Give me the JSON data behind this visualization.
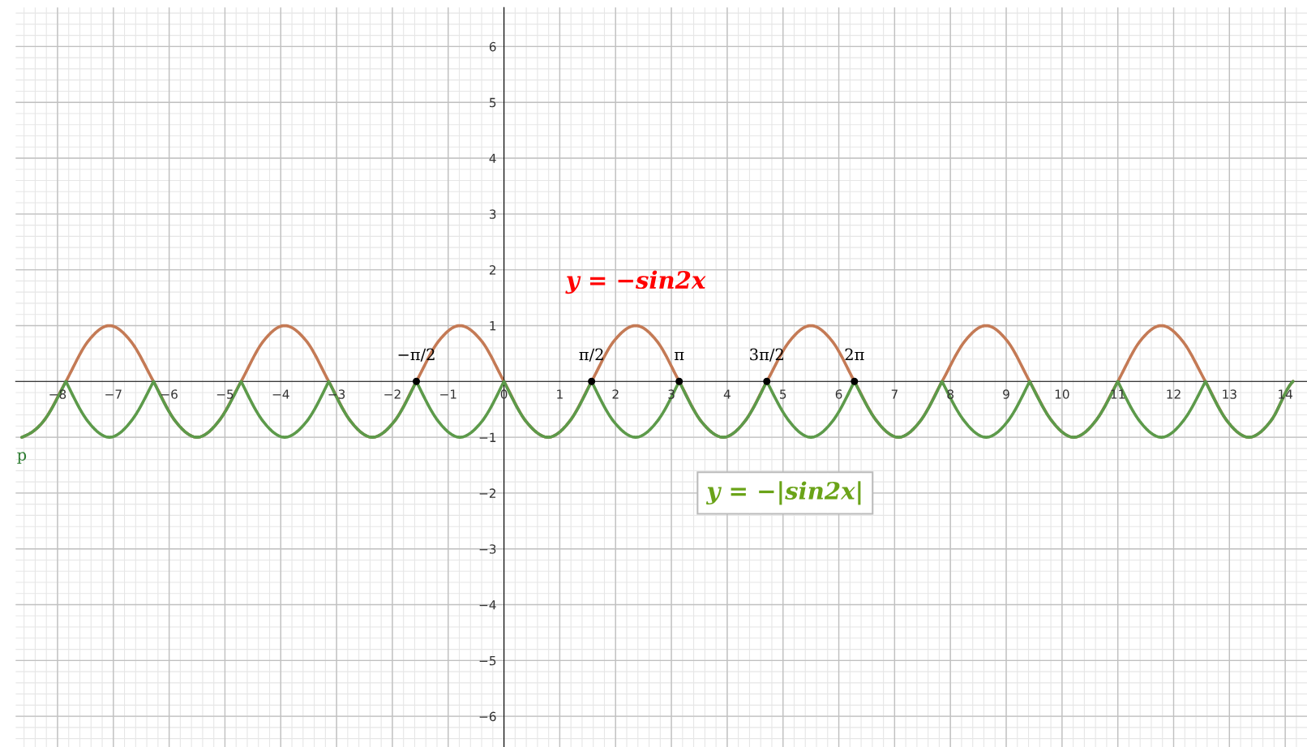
{
  "chart_data": {
    "type": "line",
    "x": [
      -8.64,
      -8.25,
      -7.85,
      -7.46,
      -7.07,
      -6.68,
      -6.28,
      -5.89,
      -5.5,
      -5.11,
      -4.71,
      -4.32,
      -3.93,
      -3.53,
      -3.14,
      -2.75,
      -2.36,
      -1.96,
      -1.57,
      -1.18,
      -0.79,
      -0.39,
      0,
      0.39,
      0.79,
      1.18,
      1.57,
      1.96,
      2.36,
      2.75,
      3.14,
      3.53,
      3.93,
      4.32,
      4.71,
      5.11,
      5.5,
      5.89,
      6.28,
      6.68,
      7.07,
      7.46,
      7.85,
      8.25,
      8.64,
      9.03,
      9.42,
      9.82,
      10.21,
      10.6,
      11.0,
      11.39,
      11.78,
      12.17,
      12.57,
      12.96,
      13.35,
      13.74,
      14.14
    ],
    "series": [
      {
        "name": "y = −sin2x",
        "color": "#c47a55",
        "values": [
          -1,
          -0.71,
          0,
          0.71,
          1,
          0.71,
          0,
          -0.71,
          -1,
          -0.71,
          0,
          0.71,
          1,
          0.71,
          0,
          -0.71,
          -1,
          -0.71,
          0,
          0.71,
          1,
          0.71,
          0,
          -0.71,
          -1,
          -0.71,
          0,
          0.71,
          1,
          0.71,
          0,
          -0.71,
          -1,
          -0.71,
          0,
          0.71,
          1,
          0.71,
          0,
          -0.71,
          -1,
          -0.71,
          0,
          0.71,
          1,
          0.71,
          0,
          -0.71,
          -1,
          -0.71,
          0,
          0.71,
          1,
          0.71,
          0,
          -0.71,
          -1,
          -0.71,
          0
        ]
      },
      {
        "name": "y = −|sin2x|",
        "color": "#5c9a4a",
        "values": [
          -1,
          -0.71,
          0,
          -0.71,
          -1,
          -0.71,
          0,
          -0.71,
          -1,
          -0.71,
          0,
          -0.71,
          -1,
          -0.71,
          0,
          -0.71,
          -1,
          -0.71,
          0,
          -0.71,
          -1,
          -0.71,
          0,
          -0.71,
          -1,
          -0.71,
          0,
          -0.71,
          -1,
          -0.71,
          0,
          -0.71,
          -1,
          -0.71,
          0,
          -0.71,
          -1,
          -0.71,
          0,
          -0.71,
          -1,
          -0.71,
          0,
          -0.71,
          -1,
          -0.71,
          0,
          -0.71,
          -1,
          -0.71,
          0,
          -0.71,
          -1,
          -0.71,
          0,
          -0.71,
          -1,
          -0.71,
          0
        ]
      },
      {
        "type": "scatter",
        "color": "#000000",
        "x": [
          -1.57,
          1.57,
          3.14,
          4.71,
          6.28
        ],
        "values": [
          0,
          0,
          0,
          0,
          0
        ],
        "marker": "circle"
      }
    ],
    "annotations": [
      {
        "text": "−π/2",
        "x": -1.57,
        "y": 0
      },
      {
        "text": "π/2",
        "x": 1.57,
        "y": 0
      },
      {
        "text": "π",
        "x": 3.14,
        "y": 0
      },
      {
        "text": "3π/2",
        "x": 4.71,
        "y": 0
      },
      {
        "text": "2π",
        "x": 6.28,
        "y": 0
      },
      {
        "text": "p",
        "x": -8.64,
        "y": -1
      }
    ],
    "xlim": [
      -8.75,
      14.39
    ],
    "ylim": [
      -6.55,
      6.7
    ],
    "xticks": [
      {
        "value": -8,
        "label": "−8"
      },
      {
        "value": -7,
        "label": "−7"
      },
      {
        "value": -6,
        "label": "−6"
      },
      {
        "value": -5,
        "label": "−5"
      },
      {
        "value": -4,
        "label": "−4"
      },
      {
        "value": -3,
        "label": "−3"
      },
      {
        "value": -2,
        "label": "−2"
      },
      {
        "value": -1,
        "label": "−1"
      },
      0,
      1,
      2,
      3,
      4,
      5,
      6,
      7,
      8,
      9,
      10,
      11,
      12,
      13,
      14
    ],
    "yticks": [
      {
        "value": -6,
        "label": "−6"
      },
      {
        "value": -5,
        "label": "−5"
      },
      {
        "value": -4,
        "label": "−4"
      },
      {
        "value": -3,
        "label": "−3"
      },
      {
        "value": -2,
        "label": "−2"
      },
      {
        "value": -1,
        "label": "−1"
      },
      1,
      2,
      3,
      4,
      5,
      6
    ],
    "grid": true,
    "legend": false
  }
}
